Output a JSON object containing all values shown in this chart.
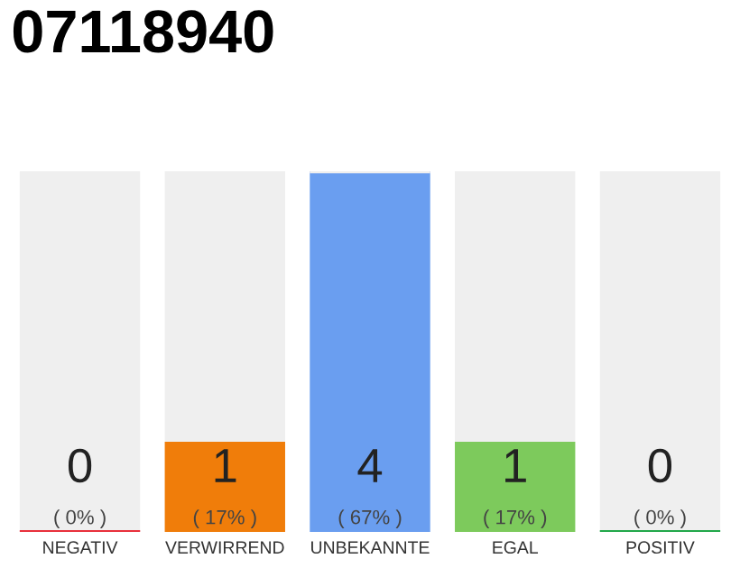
{
  "chart_data": {
    "type": "bar",
    "title": "07118940",
    "categories": [
      "NEGATIV",
      "VERWIRREND",
      "UNBEKANNTE",
      "EGAL",
      "POSITIV"
    ],
    "stacked": true,
    "series": [
      {
        "colors": [
          "#e8303c",
          "#f07d0a",
          "#6a9ef0",
          "#7dca5c",
          "#22a84a"
        ],
        "values": [
          0,
          1,
          4,
          1,
          0
        ],
        "value_labels": [
          "0\n( 0% )",
          "1\n( 17% )",
          "4\n( 67% )",
          "1\n( 17% )",
          "0\n( 0% )"
        ]
      },
      {
        "color": "#efefef",
        "values": [
          4,
          3,
          0,
          3,
          4
        ]
      }
    ],
    "ylim": [
      0,
      4
    ],
    "tick_labels": "x",
    "grid": false,
    "legend": false
  }
}
